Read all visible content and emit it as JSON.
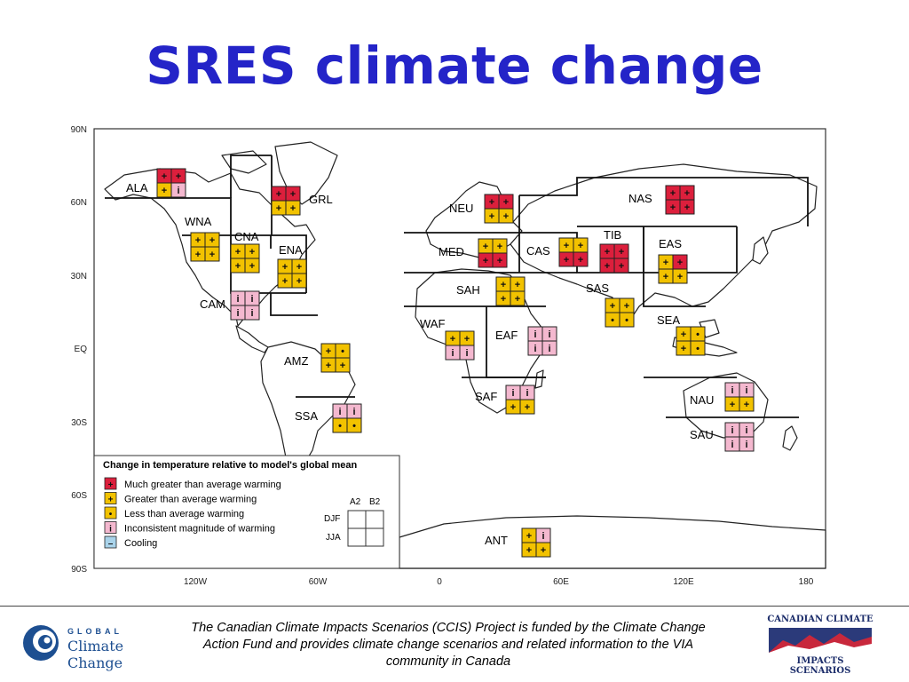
{
  "slide": {
    "title": "SRES climate change",
    "footer_text": "The Canadian Climate Impacts Scenarios (CCIS) Project is funded by the Climate Change Action Fund and provides climate change scenarios and related information to the VIA community in Canada"
  },
  "logos": {
    "left_small": "GLOBAL",
    "left_main": "Climate Change",
    "right_top": "CANADIAN CLIMATE",
    "right_bottom": "IMPACTS SCENARIOS"
  },
  "map": {
    "lat_labels": [
      "90N",
      "60N",
      "30N",
      "EQ",
      "30S",
      "60S",
      "90S"
    ],
    "lon_labels": [
      "120W",
      "60W",
      "0",
      "60E",
      "120E",
      "180"
    ]
  },
  "legend": {
    "title": "Change in temperature relative to model's global mean",
    "items": [
      {
        "code": "red",
        "symbol": "+",
        "label": "Much greater than average warming"
      },
      {
        "code": "yellow",
        "symbol": "+",
        "label": "Greater than average warming"
      },
      {
        "code": "yellow",
        "symbol": "•",
        "label": "Less than average warming"
      },
      {
        "code": "pink",
        "symbol": "i",
        "label": "Inconsistent magnitude of warming"
      },
      {
        "code": "blue",
        "symbol": "–",
        "label": "Cooling"
      }
    ],
    "col_a": "A2",
    "col_b": "B2",
    "row_djf": "DJF",
    "row_jja": "JJA"
  },
  "colors": {
    "red": "#dc1f3c",
    "yellow": "#f2c200",
    "pink": "#f4b8cf",
    "blue": "#a9d3ea",
    "title": "#2424c8"
  },
  "regions": [
    {
      "name": "ALA",
      "cells": [
        "red+",
        "red+",
        "yellow+",
        "pinki"
      ]
    },
    {
      "name": "GRL",
      "cells": [
        "red+",
        "red+",
        "yellow+",
        "yellow+"
      ]
    },
    {
      "name": "WNA",
      "cells": [
        "yellow+",
        "yellow+",
        "yellow+",
        "yellow+"
      ]
    },
    {
      "name": "CNA",
      "cells": [
        "yellow+",
        "yellow+",
        "yellow+",
        "yellow+"
      ]
    },
    {
      "name": "ENA",
      "cells": [
        "yellow+",
        "yellow+",
        "yellow+",
        "yellow+"
      ]
    },
    {
      "name": "CAM",
      "cells": [
        "pinki",
        "pinki",
        "pinki",
        "pinki"
      ]
    },
    {
      "name": "AMZ",
      "cells": [
        "yellow+",
        "yellow•",
        "yellow+",
        "yellow+"
      ]
    },
    {
      "name": "SSA",
      "cells": [
        "pinki",
        "pinki",
        "yellow•",
        "yellow•"
      ]
    },
    {
      "name": "NEU",
      "cells": [
        "red+",
        "red+",
        "yellow+",
        "yellow+"
      ]
    },
    {
      "name": "MED",
      "cells": [
        "yellow+",
        "yellow+",
        "red+",
        "red+"
      ]
    },
    {
      "name": "SAH",
      "cells": [
        "yellow+",
        "yellow+",
        "yellow+",
        "yellow+"
      ]
    },
    {
      "name": "WAF",
      "cells": [
        "yellow+",
        "yellow+",
        "pinki",
        "pinki"
      ]
    },
    {
      "name": "EAF",
      "cells": [
        "pinki",
        "pinki",
        "pinki",
        "pinki"
      ]
    },
    {
      "name": "SAF",
      "cells": [
        "pinki",
        "pinki",
        "yellow+",
        "yellow+"
      ]
    },
    {
      "name": "NAS",
      "cells": [
        "red+",
        "red+",
        "red+",
        "red+"
      ]
    },
    {
      "name": "CAS",
      "cells": [
        "yellow+",
        "yellow+",
        "red+",
        "red+"
      ]
    },
    {
      "name": "TIB",
      "cells": [
        "red+",
        "red+",
        "red+",
        "red+"
      ]
    },
    {
      "name": "EAS",
      "cells": [
        "yellow+",
        "red+",
        "yellow+",
        "yellow+"
      ]
    },
    {
      "name": "SAS",
      "cells": [
        "yellow+",
        "yellow+",
        "yellow•",
        "yellow•"
      ]
    },
    {
      "name": "SEA",
      "cells": [
        "yellow+",
        "yellow•",
        "yellow+",
        "yellow•"
      ]
    },
    {
      "name": "NAU",
      "cells": [
        "pinki",
        "pinki",
        "yellow+",
        "yellow+"
      ]
    },
    {
      "name": "SAU",
      "cells": [
        "pinki",
        "pinki",
        "pinki",
        "pinki"
      ]
    },
    {
      "name": "ANT",
      "cells": [
        "yellow+",
        "pinki",
        "yellow+",
        "yellow+"
      ]
    }
  ]
}
